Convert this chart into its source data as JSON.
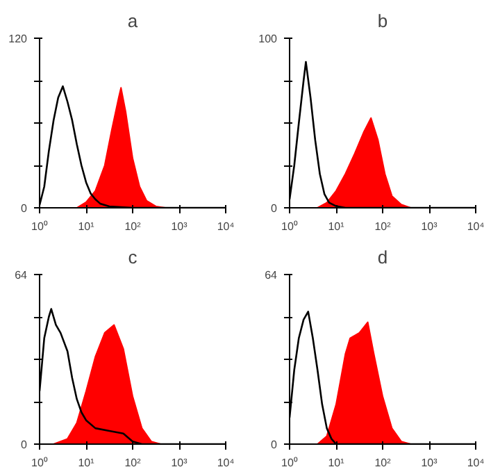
{
  "chart_data": [
    {
      "type": "area",
      "title": "a",
      "log": "x",
      "xlim": [
        1,
        10000
      ],
      "ylim": [
        0,
        120
      ],
      "xticks": [
        {
          "value": 1,
          "label": "10⁰"
        },
        {
          "value": 10,
          "label": "10¹"
        },
        {
          "value": 100,
          "label": "10²"
        },
        {
          "value": 1000,
          "label": "10³"
        },
        {
          "value": 10000,
          "label": "10⁴"
        }
      ],
      "yticks": [
        0,
        {
          "value": 30,
          "label": null
        },
        {
          "value": 60,
          "label": null
        },
        {
          "value": 90,
          "label": null
        },
        120
      ],
      "series": [
        {
          "type": "line",
          "color": "#000000",
          "x": [
            1,
            1.26,
            1.58,
            2,
            2.51,
            3.16,
            3.98,
            5.01,
            6.31,
            7.94,
            10,
            12.6,
            15.8,
            20,
            31.6,
            100,
            1000,
            10000
          ],
          "values": [
            2,
            15,
            40,
            62,
            78,
            86,
            75,
            62,
            45,
            30,
            18,
            10,
            6,
            3,
            1,
            0,
            0,
            0
          ]
        },
        {
          "color": "#ff0000",
          "x": [
            6.31,
            10,
            15.8,
            25.1,
            35.5,
            50.1,
            56.2,
            70.8,
            100,
            141,
            200,
            316,
            501
          ],
          "values": [
            0,
            4,
            12,
            30,
            55,
            78,
            85,
            68,
            35,
            15,
            5,
            1,
            0
          ]
        }
      ]
    },
    {
      "type": "area",
      "title": "b",
      "log": "x",
      "xlim": [
        1,
        10000
      ],
      "ylim": [
        0,
        100
      ],
      "xticks": [
        {
          "value": 1,
          "label": "10⁰"
        },
        {
          "value": 10,
          "label": "10¹"
        },
        {
          "value": 100,
          "label": "10²"
        },
        {
          "value": 1000,
          "label": "10³"
        },
        {
          "value": 10000,
          "label": "10⁴"
        }
      ],
      "yticks": [
        0,
        {
          "value": 25,
          "label": null
        },
        {
          "value": 50,
          "label": null
        },
        {
          "value": 75,
          "label": null
        },
        100
      ],
      "series": [
        {
          "type": "line",
          "color": "#000000",
          "x": [
            1,
            1.26,
            1.58,
            2,
            2.24,
            2.82,
            3.55,
            4.47,
            5.62,
            7.08,
            10,
            15.8,
            10000
          ],
          "values": [
            5,
            25,
            50,
            75,
            86,
            65,
            40,
            20,
            8,
            3,
            1,
            0,
            0
          ]
        },
        {
          "color": "#ff0000",
          "x": [
            3.98,
            6.31,
            10,
            15.8,
            25.1,
            39.8,
            56.2,
            79.4,
            112,
            158,
            251,
            398
          ],
          "values": [
            0,
            3,
            10,
            20,
            32,
            45,
            53,
            40,
            20,
            7,
            2,
            0
          ]
        }
      ]
    },
    {
      "type": "area",
      "title": "c",
      "log": "x",
      "xlim": [
        1,
        10000
      ],
      "ylim": [
        0,
        64
      ],
      "xticks": [
        {
          "value": 1,
          "label": "10⁰"
        },
        {
          "value": 10,
          "label": "10¹"
        },
        {
          "value": 100,
          "label": "10²"
        },
        {
          "value": 1000,
          "label": "10³"
        },
        {
          "value": 10000,
          "label": "10⁴"
        }
      ],
      "yticks": [
        0,
        {
          "value": 16,
          "label": null
        },
        {
          "value": 32,
          "label": null
        },
        {
          "value": 48,
          "label": null
        },
        64
      ],
      "series": [
        {
          "type": "line",
          "color": "#000000",
          "x": [
            1,
            1.26,
            1.58,
            1.78,
            2.24,
            2.82,
            3.98,
            5.01,
            6.31,
            7.94,
            10,
            15.8,
            31.6,
            63.1,
            100,
            158,
            10000
          ],
          "values": [
            20,
            40,
            48,
            51,
            45,
            42,
            35,
            25,
            17,
            12,
            9,
            6,
            5,
            4,
            1,
            0,
            0
          ]
        },
        {
          "color": "#ff0000",
          "x": [
            2,
            3.98,
            6.31,
            10,
            15.8,
            25.1,
            39.8,
            63.1,
            100,
            158,
            251,
            398
          ],
          "values": [
            0,
            2,
            8,
            20,
            33,
            42,
            45,
            36,
            18,
            6,
            1,
            0
          ]
        }
      ]
    },
    {
      "type": "area",
      "title": "d",
      "log": "x",
      "xlim": [
        1,
        10000
      ],
      "ylim": [
        0,
        64
      ],
      "xticks": [
        {
          "value": 1,
          "label": "10⁰"
        },
        {
          "value": 10,
          "label": "10¹"
        },
        {
          "value": 100,
          "label": "10²"
        },
        {
          "value": 1000,
          "label": "10³"
        },
        {
          "value": 10000,
          "label": "10⁴"
        }
      ],
      "yticks": [
        0,
        {
          "value": 16,
          "label": null
        },
        {
          "value": 32,
          "label": null
        },
        {
          "value": 48,
          "label": null
        },
        64
      ],
      "series": [
        {
          "type": "line",
          "color": "#000000",
          "x": [
            1,
            1.26,
            1.58,
            2,
            2.51,
            3.16,
            3.98,
            5.01,
            6.31,
            7.94,
            10,
            10000
          ],
          "values": [
            10,
            28,
            40,
            47,
            50,
            40,
            28,
            15,
            6,
            2,
            0,
            0
          ]
        },
        {
          "color": "#ff0000",
          "x": [
            3.98,
            6.31,
            10,
            15.8,
            20,
            31.6,
            47.9,
            63.1,
            100,
            158,
            251,
            398
          ],
          "values": [
            0,
            3,
            15,
            34,
            40,
            42,
            46,
            35,
            18,
            6,
            1,
            0
          ]
        }
      ]
    }
  ]
}
